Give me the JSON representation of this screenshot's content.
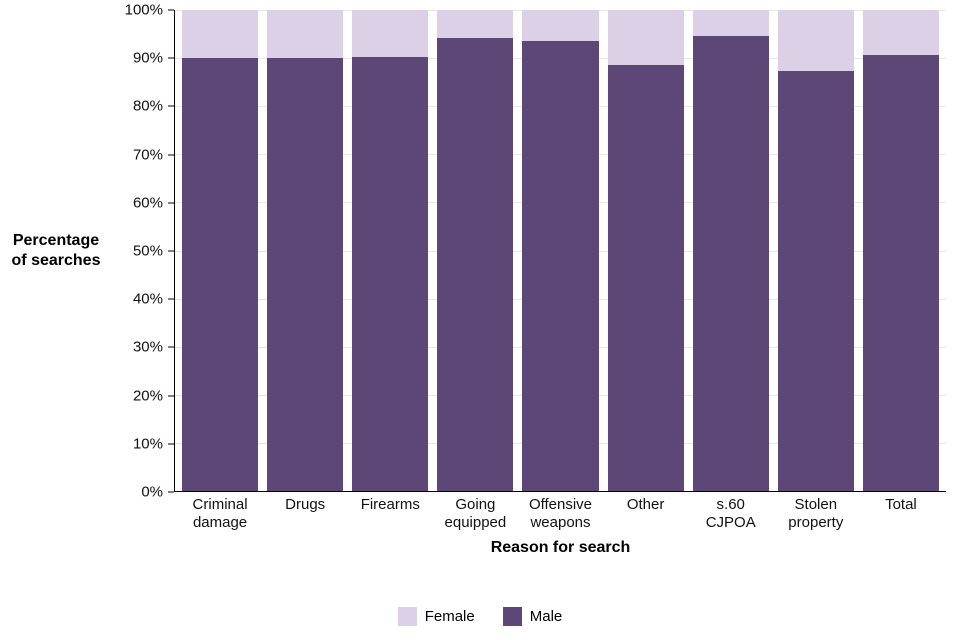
{
  "chart_data": {
    "type": "bar",
    "stacked": true,
    "normalized": "percent",
    "title": "",
    "xlabel": "Reason for search",
    "ylabel": "Percentage\nof searches",
    "categories": [
      "Criminal damage",
      "Drugs",
      "Firearms",
      "Going equipped",
      "Offensive weapons",
      "Other",
      "s.60 CJPOA",
      "Stolen property",
      "Total"
    ],
    "series": [
      {
        "name": "Male",
        "color": "#5D4777",
        "values": [
          90.0,
          90.0,
          90.3,
          94.2,
          93.6,
          88.5,
          94.5,
          87.3,
          90.6
        ]
      },
      {
        "name": "Female",
        "color": "#DBD0E6",
        "values": [
          10.0,
          10.0,
          9.7,
          5.8,
          6.4,
          11.5,
          5.5,
          12.7,
          9.4
        ]
      }
    ],
    "ylim": [
      0,
      100
    ],
    "y_ticks": [
      "0%",
      "10%",
      "20%",
      "30%",
      "40%",
      "50%",
      "60%",
      "70%",
      "80%",
      "90%",
      "100%"
    ],
    "grid": "horizontal",
    "legend_position": "bottom",
    "legend": [
      "Female",
      "Male"
    ]
  },
  "colors": {
    "gridline": "#e8e8e8",
    "axis": "#000000",
    "male": "#5D4777",
    "female": "#DBD0E6"
  }
}
